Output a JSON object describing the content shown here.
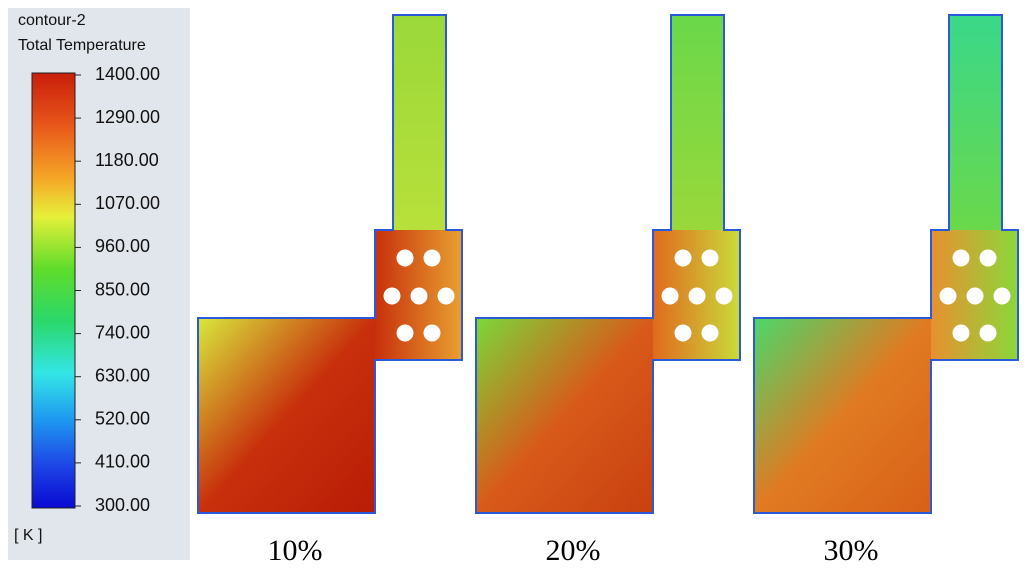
{
  "legend": {
    "title": "contour-2",
    "variable": "Total Temperature",
    "ticks": [
      {
        "value": 1400,
        "label": "1400.00"
      },
      {
        "value": 1290,
        "label": "1290.00"
      },
      {
        "value": 1180,
        "label": "1180.00"
      },
      {
        "value": 1070,
        "label": "1070.00"
      },
      {
        "value": 960,
        "label": "960.00"
      },
      {
        "value": 850,
        "label": "850.00"
      },
      {
        "value": 740,
        "label": "740.00"
      },
      {
        "value": 630,
        "label": "630.00"
      },
      {
        "value": 520,
        "label": "520.00"
      },
      {
        "value": 410,
        "label": "410.00"
      },
      {
        "value": 300,
        "label": "300.00"
      }
    ],
    "unit": "[ K ]"
  },
  "panels": [
    {
      "label": "10%"
    },
    {
      "label": "20%"
    },
    {
      "label": "30%"
    }
  ]
}
